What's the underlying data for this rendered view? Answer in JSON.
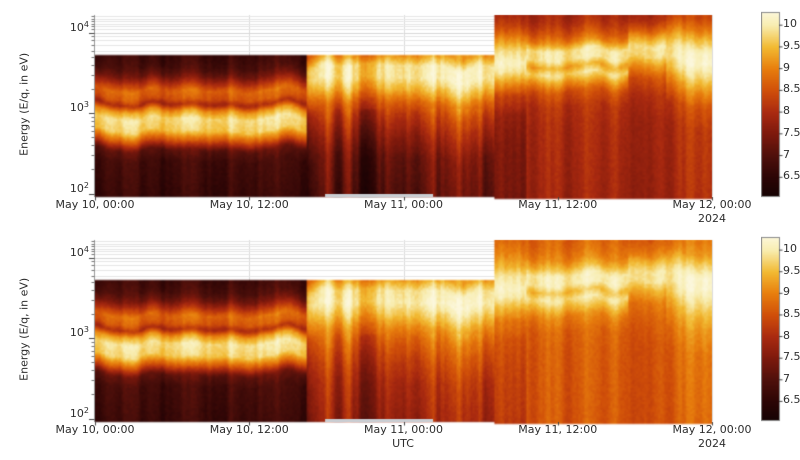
{
  "page": {
    "background": "#ffffff"
  },
  "y_axis_label": "Energy (E/q, in eV)",
  "x_axis_label": "UTC",
  "year_label": "2024",
  "x_ticks": [
    {
      "label": "May 10, 00:00",
      "hours": 0
    },
    {
      "label": "May 10, 12:00",
      "hours": 12
    },
    {
      "label": "May 11, 00:00",
      "hours": 24
    },
    {
      "label": "May 11, 12:00",
      "hours": 36
    },
    {
      "label": "May 12, 00:00",
      "hours": 48
    }
  ],
  "y_ticks": [
    {
      "base": "10",
      "exp": "2",
      "log10": 2
    },
    {
      "base": "10",
      "exp": "3",
      "log10": 3
    },
    {
      "base": "10",
      "exp": "4",
      "log10": 4
    }
  ],
  "colorbar": {
    "tick_labels": [
      {
        "label": "10",
        "value": 10
      },
      {
        "label": "9.5",
        "value": 9.5
      },
      {
        "label": "9",
        "value": 9
      },
      {
        "label": "8.5",
        "value": 8.5
      },
      {
        "label": "8",
        "value": 8
      },
      {
        "label": "7.5",
        "value": 7.5
      },
      {
        "label": "7",
        "value": 7
      },
      {
        "label": "6.5",
        "value": 6.5
      }
    ],
    "bar_value_range": [
      6.07,
      10.28
    ],
    "colormap": [
      {
        "v": 6.0,
        "c": "#120203"
      },
      {
        "v": 6.5,
        "c": "#2c0505"
      },
      {
        "v": 7.0,
        "c": "#4f100b"
      },
      {
        "v": 7.5,
        "c": "#7d190c"
      },
      {
        "v": 8.0,
        "c": "#aa2a10"
      },
      {
        "v": 8.5,
        "c": "#d04f09"
      },
      {
        "v": 9.0,
        "c": "#e87e0d"
      },
      {
        "v": 9.5,
        "c": "#f2ba32"
      },
      {
        "v": 10.0,
        "c": "#f8edb0"
      },
      {
        "v": 10.4,
        "c": "#fdfae6"
      }
    ]
  },
  "chart_data": [
    {
      "type": "heatmap",
      "panel": "top",
      "x_tick_labels": [
        "May 10, 00:00",
        "May 10, 12:00",
        "May 11, 00:00",
        "May 11, 12:00",
        "May 12, 00:00"
      ],
      "x_hours_range": [
        0,
        48
      ],
      "ylabel": "Energy (E/q, in eV)",
      "y_log10_range": [
        1.97,
        4.22
      ],
      "colorbar_range": [
        6.5,
        10
      ],
      "bottom_gray_bar": {
        "t0": 17.9,
        "t1": 26.3
      },
      "segments": [
        {
          "t0": 0,
          "t1": 16.5,
          "cutoff": 3.72,
          "streak": 0.32,
          "jitter": 0.06,
          "profile": [
            [
              1.97,
              6.7
            ],
            [
              2.42,
              6.85
            ],
            [
              2.56,
              7.2
            ],
            [
              2.68,
              8.6
            ],
            [
              2.8,
              9.7
            ],
            [
              2.95,
              9.9
            ],
            [
              3.05,
              9.2
            ],
            [
              3.13,
              8.0
            ],
            [
              3.2,
              8.6
            ],
            [
              3.3,
              8.8
            ],
            [
              3.38,
              8.2
            ],
            [
              3.48,
              7.4
            ],
            [
              3.58,
              6.95
            ],
            [
              3.72,
              6.75
            ]
          ]
        },
        {
          "t0": 16.5,
          "t1": 31.1,
          "cutoff": 3.72,
          "streak": 0.55,
          "jitter": 0.07,
          "lowAmp": 1.4,
          "profile": [
            [
              1.97,
              7.0
            ],
            [
              2.4,
              7.2
            ],
            [
              2.7,
              7.7
            ],
            [
              2.95,
              8.2
            ],
            [
              3.1,
              8.7
            ],
            [
              3.25,
              9.4
            ],
            [
              3.4,
              9.9
            ],
            [
              3.55,
              9.9
            ],
            [
              3.65,
              9.3
            ],
            [
              3.72,
              8.9
            ]
          ]
        },
        {
          "t0": 31.1,
          "t1": 33.6,
          "streak": 0.4,
          "jitter": 0.05,
          "profile": [
            [
              1.97,
              7.3
            ],
            [
              2.6,
              7.4
            ],
            [
              2.95,
              7.6
            ],
            [
              3.2,
              8.2
            ],
            [
              3.35,
              9.0
            ],
            [
              3.5,
              9.8
            ],
            [
              3.62,
              10.0
            ],
            [
              3.75,
              9.7
            ],
            [
              3.88,
              9.1
            ],
            [
              4.0,
              8.5
            ],
            [
              4.1,
              8.1
            ],
            [
              4.22,
              7.8
            ]
          ]
        },
        {
          "t0": 33.6,
          "t1": 41.5,
          "streak": 0.3,
          "jitter": 0.05,
          "profile": [
            [
              1.97,
              7.85
            ],
            [
              2.8,
              7.95
            ],
            [
              3.1,
              8.1
            ],
            [
              3.28,
              8.5
            ],
            [
              3.4,
              9.2
            ],
            [
              3.5,
              9.8
            ],
            [
              3.59,
              9.3
            ],
            [
              3.68,
              9.9
            ],
            [
              3.79,
              9.9
            ],
            [
              3.9,
              9.0
            ],
            [
              4.0,
              8.5
            ],
            [
              4.12,
              8.1
            ],
            [
              4.22,
              7.9
            ]
          ]
        },
        {
          "t0": 41.5,
          "t1": 44.5,
          "streak": 0.32,
          "jitter": 0.05,
          "profile": [
            [
              1.97,
              7.85
            ],
            [
              2.9,
              7.95
            ],
            [
              3.2,
              8.15
            ],
            [
              3.42,
              8.6
            ],
            [
              3.58,
              9.3
            ],
            [
              3.7,
              9.9
            ],
            [
              3.82,
              10.0
            ],
            [
              3.93,
              9.4
            ],
            [
              4.03,
              8.7
            ],
            [
              4.13,
              8.2
            ],
            [
              4.22,
              8.0
            ]
          ]
        },
        {
          "t0": 44.5,
          "t1": 48.01,
          "streak": 0.42,
          "jitter": 0.06,
          "profile": [
            [
              1.97,
              7.9
            ],
            [
              2.8,
              8.0
            ],
            [
              3.1,
              8.3
            ],
            [
              3.3,
              8.9
            ],
            [
              3.5,
              9.6
            ],
            [
              3.66,
              10.0
            ],
            [
              3.8,
              9.9
            ],
            [
              3.95,
              9.3
            ],
            [
              4.08,
              8.7
            ],
            [
              4.22,
              8.2
            ]
          ]
        }
      ]
    },
    {
      "type": "heatmap",
      "panel": "bottom",
      "x_tick_labels": [
        "May 10, 00:00",
        "May 10, 12:00",
        "May 11, 00:00",
        "May 11, 12:00",
        "May 12, 00:00"
      ],
      "x_hours_range": [
        0,
        48
      ],
      "xlabel": "UTC",
      "ylabel": "Energy (E/q, in eV)",
      "y_log10_range": [
        1.97,
        4.22
      ],
      "colorbar_range": [
        6.5,
        10
      ],
      "bottom_gray_bar": {
        "t0": 17.9,
        "t1": 26.3
      },
      "segments": [
        {
          "t0": 0,
          "t1": 16.5,
          "cutoff": 3.72,
          "streak": 0.32,
          "jitter": 0.06,
          "profile": [
            [
              1.97,
              6.75
            ],
            [
              2.42,
              6.9
            ],
            [
              2.56,
              7.25
            ],
            [
              2.68,
              8.65
            ],
            [
              2.8,
              9.75
            ],
            [
              2.95,
              9.95
            ],
            [
              3.05,
              9.25
            ],
            [
              3.13,
              8.05
            ],
            [
              3.2,
              8.65
            ],
            [
              3.3,
              8.85
            ],
            [
              3.38,
              8.25
            ],
            [
              3.48,
              7.45
            ],
            [
              3.58,
              7.0
            ],
            [
              3.72,
              6.8
            ]
          ]
        },
        {
          "t0": 16.5,
          "t1": 31.1,
          "cutoff": 3.72,
          "streak": 0.5,
          "jitter": 0.07,
          "lowAmp": 1.3,
          "profile": [
            [
              1.97,
              7.75
            ],
            [
              2.4,
              7.95
            ],
            [
              2.7,
              8.3
            ],
            [
              2.95,
              8.7
            ],
            [
              3.1,
              9.1
            ],
            [
              3.25,
              9.6
            ],
            [
              3.4,
              10.0
            ],
            [
              3.55,
              9.9
            ],
            [
              3.65,
              9.4
            ],
            [
              3.72,
              9.0
            ]
          ]
        },
        {
          "t0": 31.1,
          "t1": 33.6,
          "streak": 0.38,
          "jitter": 0.05,
          "profile": [
            [
              1.97,
              8.1
            ],
            [
              2.6,
              8.25
            ],
            [
              2.95,
              8.4
            ],
            [
              3.2,
              8.8
            ],
            [
              3.35,
              9.3
            ],
            [
              3.5,
              9.9
            ],
            [
              3.62,
              10.0
            ],
            [
              3.75,
              9.8
            ],
            [
              3.88,
              9.3
            ],
            [
              4.0,
              9.0
            ],
            [
              4.1,
              8.8
            ],
            [
              4.22,
              8.6
            ]
          ]
        },
        {
          "t0": 33.6,
          "t1": 41.5,
          "streak": 0.28,
          "jitter": 0.05,
          "profile": [
            [
              1.97,
              8.55
            ],
            [
              2.8,
              8.6
            ],
            [
              3.1,
              8.7
            ],
            [
              3.28,
              9.0
            ],
            [
              3.4,
              9.5
            ],
            [
              3.5,
              9.9
            ],
            [
              3.59,
              9.5
            ],
            [
              3.68,
              10.0
            ],
            [
              3.79,
              10.0
            ],
            [
              3.9,
              9.4
            ],
            [
              4.0,
              9.0
            ],
            [
              4.12,
              8.8
            ],
            [
              4.22,
              8.7
            ]
          ]
        },
        {
          "t0": 41.5,
          "t1": 44.5,
          "streak": 0.3,
          "jitter": 0.05,
          "profile": [
            [
              1.97,
              8.55
            ],
            [
              2.9,
              8.6
            ],
            [
              3.2,
              8.75
            ],
            [
              3.42,
              9.0
            ],
            [
              3.58,
              9.5
            ],
            [
              3.7,
              10.0
            ],
            [
              3.82,
              10.0
            ],
            [
              3.93,
              9.6
            ],
            [
              4.03,
              9.1
            ],
            [
              4.13,
              8.85
            ],
            [
              4.22,
              8.7
            ]
          ]
        },
        {
          "t0": 44.5,
          "t1": 48.01,
          "streak": 0.4,
          "jitter": 0.06,
          "profile": [
            [
              1.97,
              8.6
            ],
            [
              2.8,
              8.7
            ],
            [
              3.1,
              8.95
            ],
            [
              3.3,
              9.25
            ],
            [
              3.5,
              9.7
            ],
            [
              3.66,
              10.0
            ],
            [
              3.8,
              10.0
            ],
            [
              3.95,
              9.5
            ],
            [
              4.08,
              9.0
            ],
            [
              4.22,
              8.8
            ]
          ]
        }
      ]
    }
  ]
}
